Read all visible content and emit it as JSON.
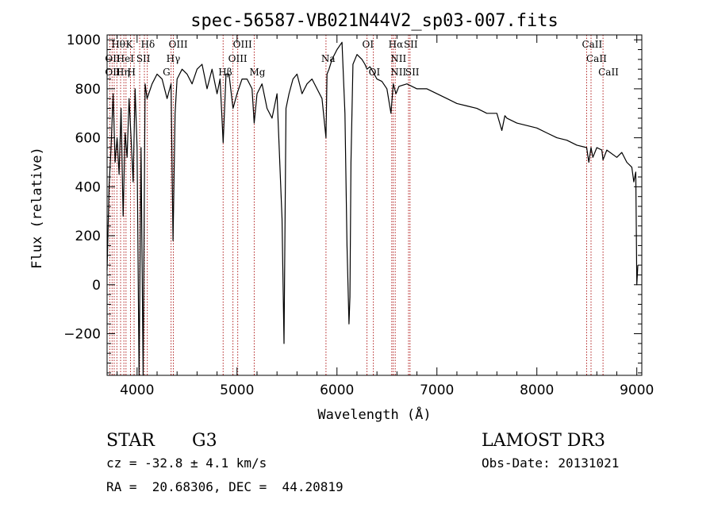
{
  "chart_data": {
    "type": "line",
    "title": "spec-56587-VB021N44V2_sp03-007.fits",
    "xlabel": "Wavelength (Å)",
    "ylabel": "Flux (relative)",
    "xlim": [
      3700,
      9050
    ],
    "ylim": [
      -370,
      1020
    ],
    "xticks": [
      4000,
      5000,
      6000,
      7000,
      8000,
      9000
    ],
    "yticks": [
      -200,
      0,
      200,
      400,
      600,
      800,
      1000
    ],
    "series": [
      {
        "name": "spectrum",
        "x": [
          3700,
          3720,
          3740,
          3760,
          3780,
          3800,
          3820,
          3840,
          3860,
          3880,
          3900,
          3920,
          3940,
          3960,
          3980,
          4000,
          4020,
          4040,
          4060,
          4080,
          4100,
          4150,
          4200,
          4250,
          4300,
          4340,
          4360,
          4380,
          4400,
          4450,
          4500,
          4550,
          4600,
          4650,
          4700,
          4750,
          4800,
          4830,
          4861,
          4890,
          4920,
          4960,
          5000,
          5050,
          5100,
          5150,
          5172,
          5200,
          5250,
          5300,
          5350,
          5400,
          5430,
          5450,
          5470,
          5490,
          5520,
          5560,
          5600,
          5650,
          5700,
          5750,
          5800,
          5850,
          5890,
          5900,
          5920,
          5950,
          6000,
          6050,
          6080,
          6100,
          6120,
          6130,
          6140,
          6160,
          6200,
          6250,
          6280,
          6300,
          6330,
          6360,
          6400,
          6450,
          6500,
          6540,
          6563,
          6590,
          6620,
          6700,
          6800,
          6900,
          7000,
          7100,
          7200,
          7300,
          7400,
          7500,
          7600,
          7650,
          7680,
          7700,
          7800,
          7900,
          8000,
          8100,
          8200,
          8300,
          8400,
          8498,
          8520,
          8542,
          8560,
          8600,
          8650,
          8662,
          8700,
          8800,
          8850,
          8900,
          8950,
          8970,
          8990,
          9000,
          9010
        ],
        "y": [
          60,
          400,
          560,
          780,
          500,
          600,
          450,
          720,
          280,
          620,
          520,
          760,
          600,
          420,
          800,
          560,
          -380,
          560,
          -380,
          820,
          760,
          820,
          860,
          840,
          760,
          820,
          180,
          700,
          840,
          880,
          860,
          820,
          880,
          900,
          800,
          880,
          780,
          840,
          580,
          860,
          860,
          720,
          780,
          840,
          840,
          800,
          660,
          780,
          820,
          720,
          680,
          780,
          480,
          270,
          -240,
          720,
          780,
          840,
          860,
          780,
          820,
          840,
          800,
          760,
          600,
          860,
          880,
          920,
          960,
          990,
          700,
          160,
          -160,
          -50,
          500,
          900,
          940,
          920,
          900,
          880,
          890,
          870,
          840,
          830,
          800,
          700,
          820,
          780,
          810,
          820,
          800,
          800,
          780,
          760,
          740,
          730,
          720,
          700,
          700,
          630,
          690,
          680,
          660,
          650,
          640,
          620,
          600,
          590,
          570,
          560,
          500,
          560,
          520,
          560,
          550,
          510,
          550,
          520,
          540,
          500,
          480,
          420,
          460,
          0,
          80
        ]
      }
    ],
    "annotations": {
      "lines_drawn": [
        3727,
        3750,
        3771,
        3798,
        3835,
        3868,
        3889,
        3934,
        3970,
        4026,
        4073,
        4102,
        4340,
        4363,
        4861,
        4959,
        5007,
        5172,
        5890,
        6300,
        6364,
        6548,
        6563,
        6583,
        6716,
        6731,
        8498,
        8542,
        8662
      ],
      "labels": [
        {
          "text": "Hθ",
          "x": 3790,
          "row": 0
        },
        {
          "text": "K",
          "x": 3934,
          "row": 0
        },
        {
          "text": "Hδ",
          "x": 4085,
          "row": 0
        },
        {
          "text": "OII",
          "x": 3727,
          "row": 1
        },
        {
          "text": "HeI",
          "x": 3840,
          "row": 1
        },
        {
          "text": "SII",
          "x": 4040,
          "row": 1
        },
        {
          "text": "OII",
          "x": 3727,
          "row": 2
        },
        {
          "text": "Hη",
          "x": 3835,
          "row": 2
        },
        {
          "text": "H",
          "x": 3950,
          "row": 2
        },
        {
          "text": "OIII",
          "x": 4363,
          "row": 0
        },
        {
          "text": "Hγ",
          "x": 4340,
          "row": 1
        },
        {
          "text": "G",
          "x": 4304,
          "row": 2
        },
        {
          "text": "OIII",
          "x": 5007,
          "row": 0
        },
        {
          "text": "OIII",
          "x": 4959,
          "row": 1
        },
        {
          "text": "Hβ",
          "x": 4861,
          "row": 2
        },
        {
          "text": "Mg",
          "x": 5172,
          "row": 2
        },
        {
          "text": "Na",
          "x": 5890,
          "row": 1
        },
        {
          "text": "OI",
          "x": 6300,
          "row": 0
        },
        {
          "text": "Hα",
          "x": 6563,
          "row": 0
        },
        {
          "text": "SII",
          "x": 6716,
          "row": 0
        },
        {
          "text": "NII",
          "x": 6583,
          "row": 1
        },
        {
          "text": "OI",
          "x": 6364,
          "row": 2
        },
        {
          "text": "NII",
          "x": 6583,
          "row": 2
        },
        {
          "text": "SII",
          "x": 6731,
          "row": 2
        },
        {
          "text": "CaII",
          "x": 8498,
          "row": 0
        },
        {
          "text": "CaII",
          "x": 8542,
          "row": 1
        },
        {
          "text": "CaII",
          "x": 8662,
          "row": 2
        }
      ]
    }
  },
  "info": {
    "object_class": "STAR",
    "subclass": "G3",
    "survey": "LAMOST DR3",
    "cz_line": "cz = -32.8 ± 4.1 km/s",
    "obs_date_line": "Obs-Date: 20131021",
    "coords_line": "RA =  20.68306, DEC =  44.20819"
  },
  "colors": {
    "line_marker": "#b22222",
    "spectrum": "#000000"
  }
}
